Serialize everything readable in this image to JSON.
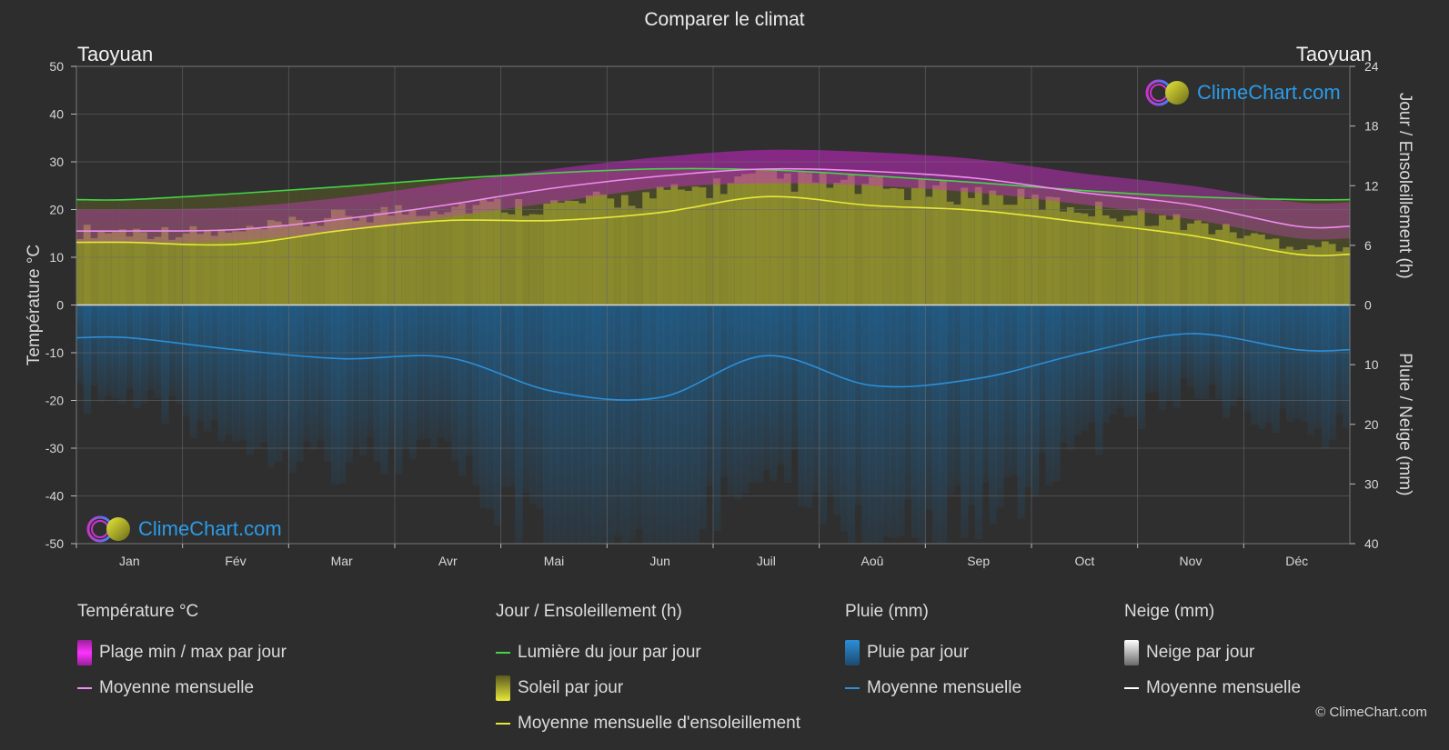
{
  "header": {
    "title": "Comparer le climat",
    "location_left": "Taoyuan",
    "location_right": "Taoyuan"
  },
  "logo": {
    "text": "ClimeChart.com"
  },
  "legend": {
    "temperature": {
      "heading": "Température °C",
      "range_label": "Plage min / max par jour",
      "mean_label": "Moyenne mensuelle"
    },
    "daylight": {
      "heading": "Jour / Ensoleillement (h)",
      "daylight_label": "Lumière du jour par jour",
      "sun_label": "Soleil par jour",
      "sun_mean_label": "Moyenne mensuelle d'ensoleillement"
    },
    "rain": {
      "heading": "Pluie (mm)",
      "rain_label": "Pluie par jour",
      "mean_label": "Moyenne mensuelle"
    },
    "snow": {
      "heading": "Neige (mm)",
      "snow_label": "Neige par jour",
      "mean_label": "Moyenne mensuelle"
    }
  },
  "copyright": "© ClimeChart.com",
  "colors": {
    "temp_range": "#d01fd0",
    "temp_mean": "#f08ef0",
    "daylight": "#44d444",
    "sunshine_fill": "#8f8f2e",
    "sunshine_mean": "#e8e83a",
    "rain_fill": "#1d5f8f",
    "rain_mean": "#2b8fd9",
    "snow_mean": "#ffffff"
  },
  "chart_data": {
    "type": "line",
    "title": "Comparer le climat",
    "categories": [
      "Jan",
      "Fév",
      "Mar",
      "Avr",
      "Mai",
      "Jun",
      "Juil",
      "Aoû",
      "Sep",
      "Oct",
      "Nov",
      "Déc"
    ],
    "left_axis": {
      "label": "Température °C",
      "ylim": [
        -50,
        50
      ],
      "ticks": [
        "50",
        "40",
        "30",
        "20",
        "10",
        "0",
        "-10",
        "-20",
        "-30",
        "-40",
        "-50"
      ]
    },
    "right_axis_top": {
      "label": "Jour / Ensoleillement (h)",
      "ylim": [
        0,
        24
      ],
      "ticks": [
        "24",
        "18",
        "12",
        "6",
        "0"
      ]
    },
    "right_axis_bottom": {
      "label": "Pluie / Neige (mm)",
      "ylim": [
        0,
        40
      ],
      "ticks": [
        "10",
        "20",
        "30",
        "40"
      ]
    },
    "series": [
      {
        "name": "Lumière du jour par jour",
        "axis": "hours",
        "values": [
          10.6,
          11.2,
          11.9,
          12.7,
          13.3,
          13.7,
          13.6,
          13.0,
          12.3,
          11.5,
          10.9,
          10.6
        ]
      },
      {
        "name": "Moyenne mensuelle d'ensoleillement",
        "axis": "hours",
        "values": [
          6.3,
          6.1,
          7.5,
          8.5,
          8.5,
          9.3,
          10.9,
          10.0,
          9.5,
          8.3,
          7.0,
          5.1
        ]
      },
      {
        "name": "Moyenne mensuelle",
        "axis": "temperature",
        "values": [
          15.5,
          15.8,
          18.0,
          21.0,
          24.5,
          27.0,
          28.5,
          28.0,
          26.5,
          23.5,
          21.0,
          16.5
        ]
      },
      {
        "name": "Moyenne mensuelle",
        "axis": "rain",
        "values": [
          5.5,
          7.5,
          9.0,
          8.8,
          14.5,
          15.5,
          8.5,
          13.5,
          12.3,
          8.0,
          4.8,
          7.5
        ]
      }
    ],
    "temp_range_max": [
      20.0,
      20.5,
      22.5,
      25.5,
      28.5,
      31.0,
      32.5,
      32.0,
      30.5,
      27.5,
      25.0,
      21.5
    ],
    "temp_range_min": [
      13.0,
      13.5,
      15.5,
      18.5,
      21.5,
      24.5,
      25.5,
      25.0,
      23.5,
      21.0,
      18.0,
      14.0
    ],
    "legend_position": "bottom",
    "grid": true
  }
}
